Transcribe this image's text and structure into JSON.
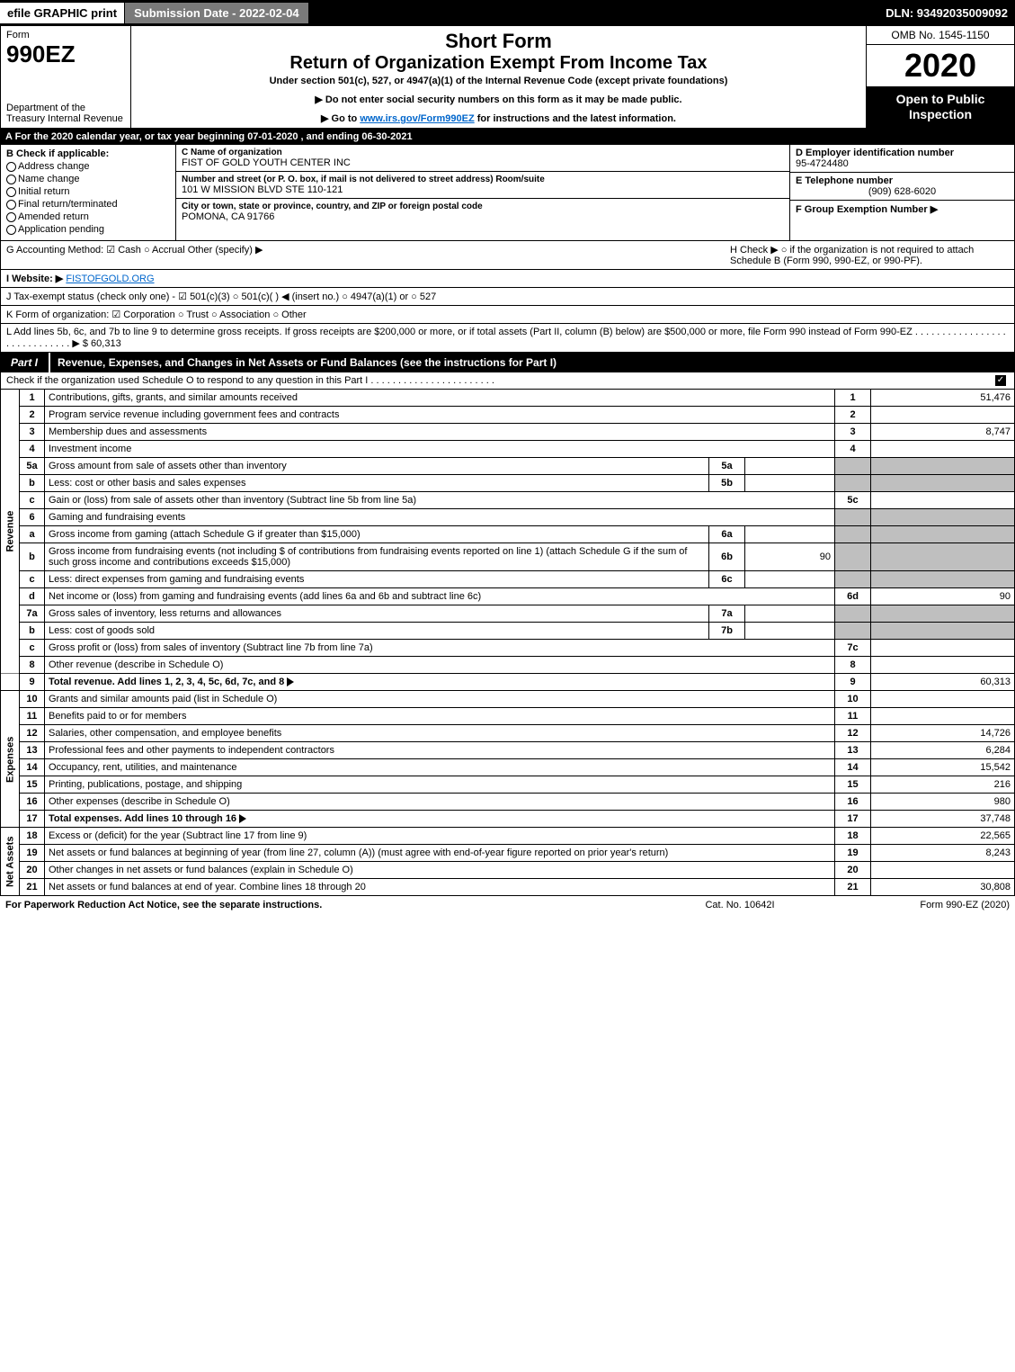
{
  "topbar": {
    "efile": "efile GRAPHIC print",
    "submission": "Submission Date - 2022-02-04",
    "dln": "DLN: 93492035009092"
  },
  "header": {
    "form_label": "Form",
    "form_number": "990EZ",
    "dept": "Department of the Treasury Internal Revenue",
    "short_form": "Short Form",
    "title": "Return of Organization Exempt From Income Tax",
    "subtitle": "Under section 501(c), 527, or 4947(a)(1) of the Internal Revenue Code (except private foundations)",
    "warning": "▶ Do not enter social security numbers on this form as it may be made public.",
    "instructions_prefix": "▶ Go to ",
    "instructions_link": "www.irs.gov/Form990EZ",
    "instructions_suffix": " for instructions and the latest information.",
    "omb": "OMB No. 1545-1150",
    "year": "2020",
    "inspection": "Open to Public Inspection"
  },
  "row_a": "A For the 2020 calendar year, or tax year beginning 07-01-2020 , and ending 06-30-2021",
  "section_b": {
    "label": "B Check if applicable:",
    "items": [
      "Address change",
      "Name change",
      "Initial return",
      "Final return/terminated",
      "Amended return",
      "Application pending"
    ]
  },
  "section_c": {
    "name_label": "C Name of organization",
    "name": "FIST OF GOLD YOUTH CENTER INC",
    "street_label": "Number and street (or P. O. box, if mail is not delivered to street address)      Room/suite",
    "street": "101 W MISSION BLVD STE 110-121",
    "city_label": "City or town, state or province, country, and ZIP or foreign postal code",
    "city": "POMONA, CA  91766"
  },
  "section_d": {
    "ein_label": "D Employer identification number",
    "ein": "95-4724480",
    "phone_label": "E Telephone number",
    "phone": "(909) 628-6020",
    "group_label": "F Group Exemption Number  ▶"
  },
  "info": {
    "g": "G Accounting Method:  ☑ Cash  ○ Accrual  Other (specify) ▶",
    "h": "H  Check ▶  ○  if the organization is not required to attach Schedule B (Form 990, 990-EZ, or 990-PF).",
    "i_label": "I Website: ▶",
    "i_value": "FISTOFGOLD.ORG",
    "j": "J Tax-exempt status (check only one) -  ☑ 501(c)(3)  ○ 501(c)(  ) ◀ (insert no.)  ○ 4947(a)(1) or  ○ 527",
    "k": "K Form of organization:  ☑ Corporation  ○ Trust  ○ Association  ○ Other",
    "l": "L Add lines 5b, 6c, and 7b to line 9 to determine gross receipts. If gross receipts are $200,000 or more, or if total assets (Part II, column (B) below) are $500,000 or more, file Form 990 instead of Form 990-EZ . . . . . . . . . . . . . . . . . . . . . . . . . . . . .  ▶ $ 60,313"
  },
  "part1": {
    "tab": "Part I",
    "title": "Revenue, Expenses, and Changes in Net Assets or Fund Balances (see the instructions for Part I)",
    "check_line": "Check if the organization used Schedule O to respond to any question in this Part I . . . . . . . . . . . . . . . . . . . . . . ."
  },
  "vlabels": {
    "revenue": "Revenue",
    "expenses": "Expenses",
    "netassets": "Net Assets"
  },
  "lines": {
    "l1": {
      "n": "1",
      "d": "Contributions, gifts, grants, and similar amounts received",
      "r": "1",
      "v": "51,476"
    },
    "l2": {
      "n": "2",
      "d": "Program service revenue including government fees and contracts",
      "r": "2",
      "v": ""
    },
    "l3": {
      "n": "3",
      "d": "Membership dues and assessments",
      "r": "3",
      "v": "8,747"
    },
    "l4": {
      "n": "4",
      "d": "Investment income",
      "r": "4",
      "v": ""
    },
    "l5a": {
      "n": "5a",
      "d": "Gross amount from sale of assets other than inventory",
      "s": "5a",
      "sv": ""
    },
    "l5b": {
      "n": "b",
      "d": "Less: cost or other basis and sales expenses",
      "s": "5b",
      "sv": ""
    },
    "l5c": {
      "n": "c",
      "d": "Gain or (loss) from sale of assets other than inventory (Subtract line 5b from line 5a)",
      "r": "5c",
      "v": ""
    },
    "l6": {
      "n": "6",
      "d": "Gaming and fundraising events"
    },
    "l6a": {
      "n": "a",
      "d": "Gross income from gaming (attach Schedule G if greater than $15,000)",
      "s": "6a",
      "sv": ""
    },
    "l6b": {
      "n": "b",
      "d": "Gross income from fundraising events (not including $               of contributions from fundraising events reported on line 1) (attach Schedule G if the sum of such gross income and contributions exceeds $15,000)",
      "s": "6b",
      "sv": "90"
    },
    "l6c": {
      "n": "c",
      "d": "Less: direct expenses from gaming and fundraising events",
      "s": "6c",
      "sv": ""
    },
    "l6d": {
      "n": "d",
      "d": "Net income or (loss) from gaming and fundraising events (add lines 6a and 6b and subtract line 6c)",
      "r": "6d",
      "v": "90"
    },
    "l7a": {
      "n": "7a",
      "d": "Gross sales of inventory, less returns and allowances",
      "s": "7a",
      "sv": ""
    },
    "l7b": {
      "n": "b",
      "d": "Less: cost of goods sold",
      "s": "7b",
      "sv": ""
    },
    "l7c": {
      "n": "c",
      "d": "Gross profit or (loss) from sales of inventory (Subtract line 7b from line 7a)",
      "r": "7c",
      "v": ""
    },
    "l8": {
      "n": "8",
      "d": "Other revenue (describe in Schedule O)",
      "r": "8",
      "v": ""
    },
    "l9": {
      "n": "9",
      "d": "Total revenue. Add lines 1, 2, 3, 4, 5c, 6d, 7c, and 8",
      "r": "9",
      "v": "60,313"
    },
    "l10": {
      "n": "10",
      "d": "Grants and similar amounts paid (list in Schedule O)",
      "r": "10",
      "v": ""
    },
    "l11": {
      "n": "11",
      "d": "Benefits paid to or for members",
      "r": "11",
      "v": ""
    },
    "l12": {
      "n": "12",
      "d": "Salaries, other compensation, and employee benefits",
      "r": "12",
      "v": "14,726"
    },
    "l13": {
      "n": "13",
      "d": "Professional fees and other payments to independent contractors",
      "r": "13",
      "v": "6,284"
    },
    "l14": {
      "n": "14",
      "d": "Occupancy, rent, utilities, and maintenance",
      "r": "14",
      "v": "15,542"
    },
    "l15": {
      "n": "15",
      "d": "Printing, publications, postage, and shipping",
      "r": "15",
      "v": "216"
    },
    "l16": {
      "n": "16",
      "d": "Other expenses (describe in Schedule O)",
      "r": "16",
      "v": "980"
    },
    "l17": {
      "n": "17",
      "d": "Total expenses. Add lines 10 through 16",
      "r": "17",
      "v": "37,748"
    },
    "l18": {
      "n": "18",
      "d": "Excess or (deficit) for the year (Subtract line 17 from line 9)",
      "r": "18",
      "v": "22,565"
    },
    "l19": {
      "n": "19",
      "d": "Net assets or fund balances at beginning of year (from line 27, column (A)) (must agree with end-of-year figure reported on prior year's return)",
      "r": "19",
      "v": "8,243"
    },
    "l20": {
      "n": "20",
      "d": "Other changes in net assets or fund balances (explain in Schedule O)",
      "r": "20",
      "v": ""
    },
    "l21": {
      "n": "21",
      "d": "Net assets or fund balances at end of year. Combine lines 18 through 20",
      "r": "21",
      "v": "30,808"
    }
  },
  "footer": {
    "left": "For Paperwork Reduction Act Notice, see the separate instructions.",
    "mid": "Cat. No. 10642I",
    "right": "Form 990-EZ (2020)"
  },
  "colors": {
    "black": "#000000",
    "white": "#ffffff",
    "gray_header": "#7a7a7a",
    "shaded": "#bfbfbf",
    "link": "#0066cc"
  }
}
